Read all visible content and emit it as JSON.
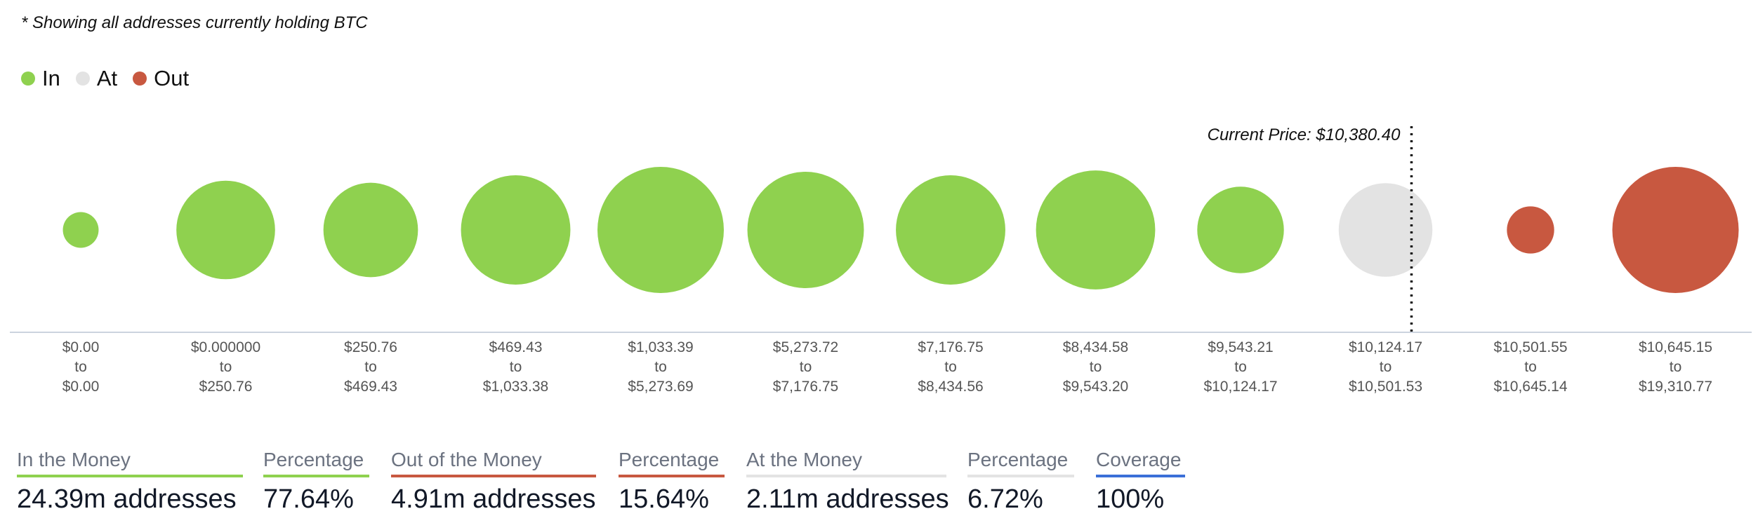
{
  "note": "* Showing all addresses currently holding BTC",
  "legend": [
    {
      "label": "In",
      "color": "#8fd14f"
    },
    {
      "label": "At",
      "color": "#e3e3e3"
    },
    {
      "label": "Out",
      "color": "#c85840"
    }
  ],
  "chart_data": {
    "type": "bubble",
    "current_price_label": "Current Price: $10,380.40",
    "current_price": 10380.4,
    "categories": [
      {
        "from": "$0.00",
        "to": "$0.00",
        "status": "in",
        "relative_size": 0.08
      },
      {
        "from": "$0.000000",
        "to": "$250.76",
        "status": "in",
        "relative_size": 0.61
      },
      {
        "from": "$250.76",
        "to": "$469.43",
        "status": "in",
        "relative_size": 0.56
      },
      {
        "from": "$469.43",
        "to": "$1,033.38",
        "status": "in",
        "relative_size": 0.75
      },
      {
        "from": "$1,033.39",
        "to": "$5,273.69",
        "status": "in",
        "relative_size": 1.0
      },
      {
        "from": "$5,273.72",
        "to": "$7,176.75",
        "status": "in",
        "relative_size": 0.85
      },
      {
        "from": "$7,176.75",
        "to": "$8,434.56",
        "status": "in",
        "relative_size": 0.75
      },
      {
        "from": "$8,434.58",
        "to": "$9,543.20",
        "status": "in",
        "relative_size": 0.89
      },
      {
        "from": "$9,543.21",
        "to": "$10,124.17",
        "status": "in",
        "relative_size": 0.47
      },
      {
        "from": "$10,124.17",
        "to": "$10,501.53",
        "status": "at",
        "relative_size": 0.55
      },
      {
        "from": "$10,501.55",
        "to": "$10,645.14",
        "status": "out",
        "relative_size": 0.14
      },
      {
        "from": "$10,645.15",
        "to": "$19,310.77",
        "status": "out",
        "relative_size": 1.0
      }
    ],
    "range_connector": "to"
  },
  "stats": [
    {
      "label": "In the Money",
      "value": "24.39m addresses",
      "color": "#8fd14f"
    },
    {
      "label": "Percentage",
      "value": "77.64%",
      "color": "#8fd14f"
    },
    {
      "label": "Out of the Money",
      "value": "4.91m addresses",
      "color": "#c85840"
    },
    {
      "label": "Percentage",
      "value": "15.64%",
      "color": "#c85840"
    },
    {
      "label": "At the Money",
      "value": "2.11m addresses",
      "color": "#e3e3e3"
    },
    {
      "label": "Percentage",
      "value": "6.72%",
      "color": "#e3e3e3"
    },
    {
      "label": "Coverage",
      "value": "100%",
      "color": "#3b6fd8"
    }
  ]
}
